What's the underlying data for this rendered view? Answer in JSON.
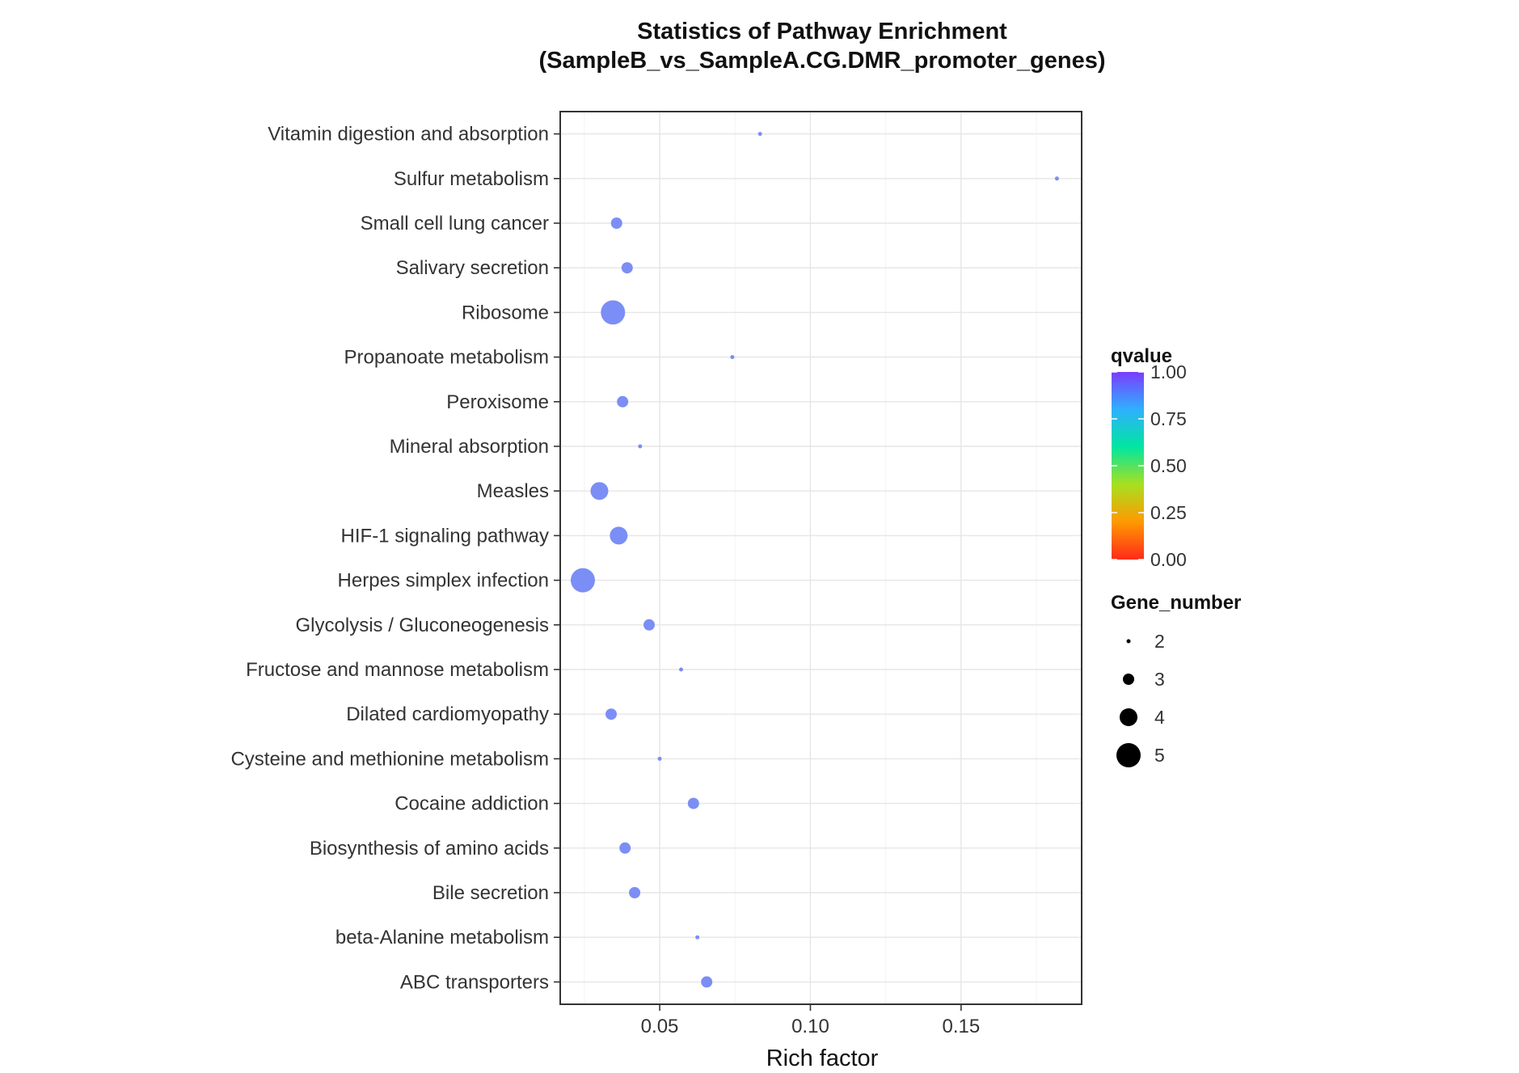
{
  "chart_data": {
    "type": "scatter",
    "title": "Statistics of Pathway Enrichment",
    "subtitle": "(SampleB_vs_SampleA.CG.DMR_promoter_genes)",
    "xlabel": "Rich factor",
    "ylabel": "",
    "xlim": [
      0.017,
      0.19
    ],
    "xticks": [
      0.05,
      0.1,
      0.15
    ],
    "xtick_labels": [
      "0.05",
      "0.10",
      "0.15"
    ],
    "grid": true,
    "categories": [
      "Vitamin digestion and absorption",
      "Sulfur metabolism",
      "Small cell lung cancer",
      "Salivary secretion",
      "Ribosome",
      "Propanoate metabolism",
      "Peroxisome",
      "Mineral absorption",
      "Measles",
      "HIF-1 signaling pathway",
      "Herpes simplex infection",
      "Glycolysis / Gluconeogenesis",
      "Fructose and mannose metabolism",
      "Dilated cardiomyopathy",
      "Cysteine and methionine metabolism",
      "Cocaine addiction",
      "Biosynthesis of amino acids",
      "Bile secretion",
      "beta-Alanine metabolism",
      "ABC transporters"
    ],
    "rich_factor": [
      0.0833,
      0.1818,
      0.0357,
      0.0392,
      0.0345,
      0.0741,
      0.0377,
      0.0435,
      0.03,
      0.0364,
      0.0245,
      0.0465,
      0.0571,
      0.0339,
      0.05,
      0.0612,
      0.0385,
      0.0417,
      0.0625,
      0.0656
    ],
    "gene_number": [
      2,
      2,
      3,
      3,
      5,
      2,
      3,
      2,
      4,
      4,
      5,
      3,
      2,
      3,
      2,
      3,
      3,
      3,
      2,
      3
    ],
    "qvalue": [
      0.86,
      0.86,
      0.86,
      0.86,
      0.86,
      0.86,
      0.86,
      0.86,
      0.86,
      0.86,
      0.86,
      0.86,
      0.86,
      0.86,
      0.86,
      0.86,
      0.86,
      0.86,
      0.86,
      0.86
    ],
    "point_color": "#7b8ef5",
    "legend": {
      "color_title": "qvalue",
      "color_ticks": [
        1.0,
        0.75,
        0.5,
        0.25,
        0.0
      ],
      "color_tick_labels": [
        "1.00",
        "0.75",
        "0.50",
        "0.25",
        "0.00"
      ],
      "color_stops": [
        "#ff2a1a",
        "#ff9900",
        "#a8e020",
        "#00e6a0",
        "#2fb0ff",
        "#7a3cff"
      ],
      "size_title": "Gene_number",
      "size_values": [
        2,
        3,
        4,
        5
      ],
      "size_labels": [
        "2",
        "3",
        "4",
        "5"
      ],
      "placement": "right"
    }
  }
}
